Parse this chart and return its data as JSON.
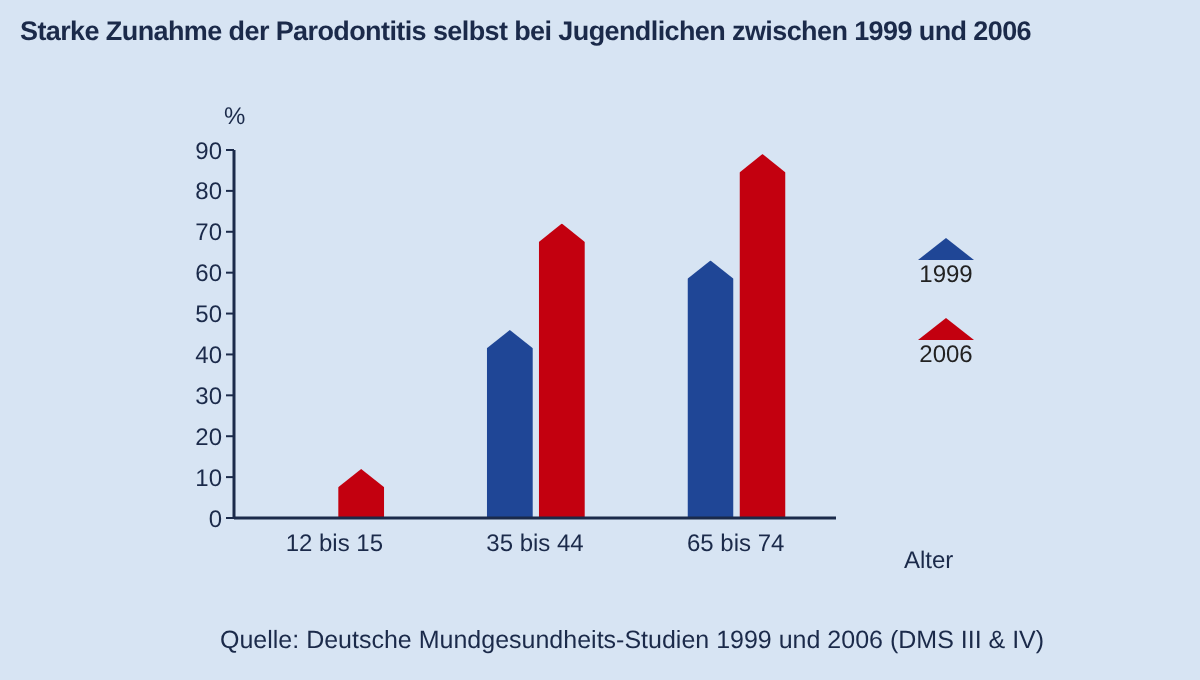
{
  "chart_data": {
    "type": "bar",
    "title": "Starke Zunahme der Parodontitis selbst bei Jugendlichen zwischen 1999 und 2006",
    "ylabel": "%",
    "xlabel": "Alter",
    "categories": [
      "12 bis 15",
      "35 bis 44",
      "65 bis 74"
    ],
    "series": [
      {
        "name": "1999",
        "color": "#1f4696",
        "values": [
          null,
          46,
          63
        ]
      },
      {
        "name": "2006",
        "color": "#c3000f",
        "values": [
          12,
          72,
          89
        ]
      }
    ],
    "ylim": [
      0,
      90
    ],
    "yticks": [
      0,
      10,
      20,
      30,
      40,
      50,
      60,
      70,
      80,
      90
    ],
    "grid": false,
    "legend": "right",
    "annotations": [
      "Quelle: Deutsche Mundgesundheits-Studien 1999 und 2006 (DMS III & IV)"
    ]
  }
}
